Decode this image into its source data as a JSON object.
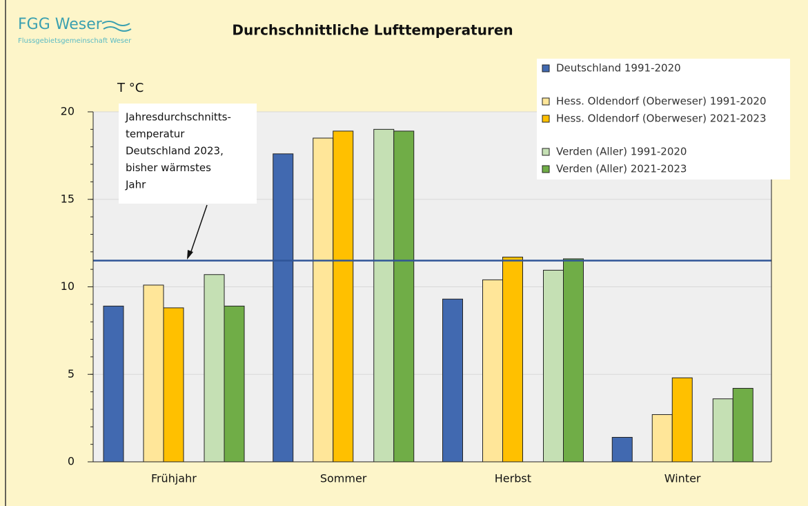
{
  "logo": {
    "name": "FGG Weser",
    "subtitle": "Flussgebietsgemeinschaft Weser"
  },
  "chart_data": {
    "type": "bar",
    "title": "Durchschnittliche Lufttemperaturen",
    "y_label": "T °C",
    "categories": [
      "Frühjahr",
      "Sommer",
      "Herbst",
      "Winter"
    ],
    "series": [
      {
        "name": "Deutschland 1991-2020",
        "color": "#4169b0",
        "values": [
          8.9,
          17.6,
          9.3,
          1.4
        ]
      },
      {
        "name": "Hess. Oldendorf (Oberweser) 1991-2020",
        "color": "#ffe699",
        "values": [
          10.1,
          18.5,
          10.4,
          2.7
        ]
      },
      {
        "name": "Hess. Oldendorf (Oberweser) 2021-2023",
        "color": "#ffc000",
        "values": [
          8.8,
          18.9,
          11.7,
          4.8
        ]
      },
      {
        "name": "Verden (Aller) 1991-2020",
        "color": "#c5e0b4",
        "values": [
          10.7,
          19.0,
          10.95,
          3.6
        ]
      },
      {
        "name": "Verden (Aller) 2021-2023",
        "color": "#70ad47",
        "values": [
          8.9,
          18.9,
          11.6,
          4.2
        ]
      }
    ],
    "ylim": [
      0,
      20
    ],
    "yticks": [
      0,
      5,
      10,
      15,
      20
    ],
    "grid": true,
    "reference_line": {
      "value": 11.5,
      "color": "#2f5597",
      "annotation": [
        "Jahresdurchschnitts-",
        "temperatur",
        "Deutschland 2023,",
        "bisher wärmstes",
        "Jahr"
      ]
    }
  }
}
